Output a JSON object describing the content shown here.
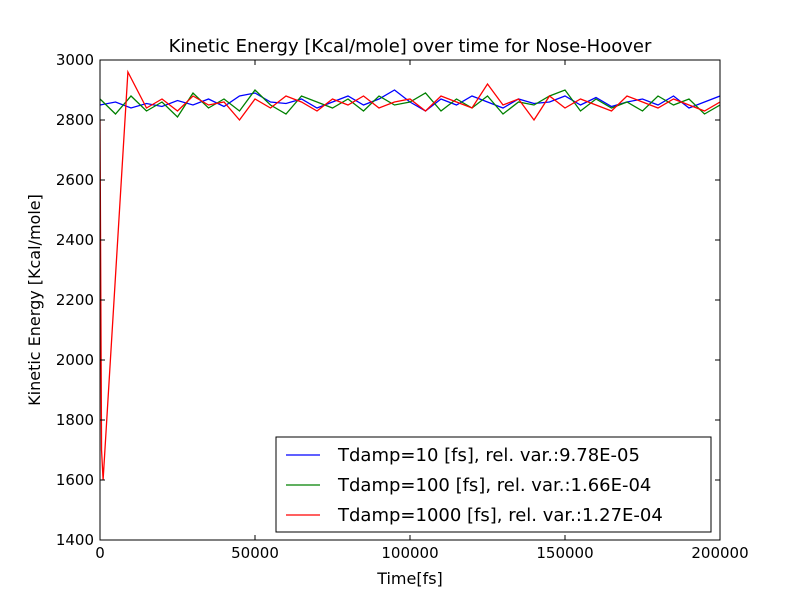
{
  "chart_data": {
    "type": "line",
    "title": "Kinetic Energy [Kcal/mole] over time for Nose-Hoover",
    "xlabel": "Time[fs]",
    "ylabel": "Kinetic Energy [Kcal/mole]",
    "xlim": [
      0,
      200000
    ],
    "ylim": [
      1400,
      3000
    ],
    "xticks": [
      0,
      50000,
      100000,
      150000,
      200000
    ],
    "xtick_labels": [
      "0",
      "50000",
      "100000",
      "150000",
      "200000"
    ],
    "yticks": [
      1400,
      1600,
      1800,
      2000,
      2200,
      2400,
      2600,
      2800,
      3000
    ],
    "ytick_labels": [
      "1400",
      "1600",
      "1800",
      "2000",
      "2200",
      "2400",
      "2600",
      "2800",
      "3000"
    ],
    "grid": false,
    "legend_position": "lower-right",
    "series": [
      {
        "name": "Tdamp=10 [fs], rel. var.:9.78E-05",
        "color": "#0000ff",
        "x": [
          0,
          5000,
          10000,
          15000,
          20000,
          25000,
          30000,
          35000,
          40000,
          45000,
          50000,
          55000,
          60000,
          65000,
          70000,
          75000,
          80000,
          85000,
          90000,
          95000,
          100000,
          105000,
          110000,
          115000,
          120000,
          125000,
          130000,
          135000,
          140000,
          145000,
          150000,
          155000,
          160000,
          165000,
          170000,
          175000,
          180000,
          185000,
          190000,
          195000,
          200000
        ],
        "y": [
          2850,
          2860,
          2840,
          2855,
          2845,
          2865,
          2850,
          2870,
          2845,
          2880,
          2890,
          2860,
          2855,
          2870,
          2840,
          2860,
          2880,
          2850,
          2870,
          2900,
          2860,
          2830,
          2870,
          2850,
          2880,
          2860,
          2840,
          2870,
          2855,
          2860,
          2880,
          2850,
          2875,
          2845,
          2860,
          2870,
          2850,
          2880,
          2840,
          2860,
          2880
        ]
      },
      {
        "name": "Tdamp=100 [fs], rel. var.:1.66E-04",
        "color": "#008000",
        "x": [
          0,
          5000,
          10000,
          15000,
          20000,
          25000,
          30000,
          35000,
          40000,
          45000,
          50000,
          55000,
          60000,
          65000,
          70000,
          75000,
          80000,
          85000,
          90000,
          95000,
          100000,
          105000,
          110000,
          115000,
          120000,
          125000,
          130000,
          135000,
          140000,
          145000,
          150000,
          155000,
          160000,
          165000,
          170000,
          175000,
          180000,
          185000,
          190000,
          195000,
          200000
        ],
        "y": [
          2870,
          2820,
          2880,
          2830,
          2860,
          2810,
          2890,
          2840,
          2870,
          2830,
          2900,
          2850,
          2820,
          2880,
          2860,
          2840,
          2870,
          2830,
          2880,
          2850,
          2860,
          2890,
          2830,
          2870,
          2840,
          2880,
          2820,
          2860,
          2850,
          2880,
          2900,
          2830,
          2870,
          2840,
          2860,
          2830,
          2880,
          2850,
          2870,
          2820,
          2850
        ]
      },
      {
        "name": "Tdamp=1000 [fs], rel. var.:1.27E-04",
        "color": "#ff0000",
        "x": [
          0,
          500,
          1000,
          9000,
          15000,
          20000,
          25000,
          30000,
          35000,
          40000,
          45000,
          50000,
          55000,
          60000,
          65000,
          70000,
          75000,
          80000,
          85000,
          90000,
          95000,
          100000,
          105000,
          110000,
          115000,
          120000,
          125000,
          130000,
          135000,
          140000,
          145000,
          150000,
          155000,
          160000,
          165000,
          170000,
          175000,
          180000,
          185000,
          190000,
          195000,
          200000
        ],
        "y": [
          2800,
          1700,
          1600,
          2960,
          2840,
          2870,
          2830,
          2880,
          2850,
          2860,
          2800,
          2870,
          2840,
          2880,
          2860,
          2830,
          2870,
          2850,
          2880,
          2840,
          2860,
          2870,
          2830,
          2880,
          2860,
          2840,
          2920,
          2850,
          2870,
          2800,
          2880,
          2840,
          2870,
          2850,
          2830,
          2880,
          2860,
          2840,
          2870,
          2850,
          2830,
          2860
        ]
      }
    ]
  }
}
